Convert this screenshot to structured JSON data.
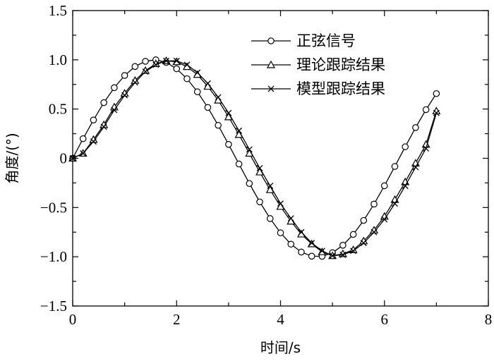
{
  "chart_data": {
    "type": "line",
    "xlabel": "时间/s",
    "ylabel": "角度/(°)",
    "xlim": [
      0,
      8
    ],
    "ylim": [
      -1.5,
      1.5
    ],
    "x_ticks": [
      0,
      2,
      4,
      6,
      8
    ],
    "y_ticks": [
      1.5,
      1.0,
      0.5,
      0,
      -0.5,
      -1.0,
      -1.5
    ],
    "x_tick_labels": [
      "0",
      "2",
      "4",
      "6",
      "8"
    ],
    "y_tick_labels": [
      "1.5",
      "1.0",
      "0.5",
      "0",
      "−0.5",
      "−1.0",
      "−1.5"
    ],
    "grid": false,
    "legend_position": "top-right",
    "line_color": "#000000",
    "series": [
      {
        "name": "正弦信号",
        "marker": "circle",
        "x": [
          0,
          0.2,
          0.4,
          0.6,
          0.8,
          1.0,
          1.2,
          1.4,
          1.6,
          1.8,
          2.0,
          2.2,
          2.4,
          2.6,
          2.8,
          3.0,
          3.2,
          3.4,
          3.6,
          3.8,
          4.0,
          4.2,
          4.4,
          4.6,
          4.8,
          5.0,
          5.2,
          5.4,
          5.6,
          5.8,
          6.0,
          6.2,
          6.4,
          6.6,
          6.8,
          7.0
        ],
        "y": [
          0,
          0.199,
          0.389,
          0.565,
          0.717,
          0.841,
          0.932,
          0.985,
          1.0,
          0.974,
          0.909,
          0.808,
          0.675,
          0.516,
          0.335,
          0.141,
          -0.058,
          -0.256,
          -0.443,
          -0.612,
          -0.757,
          -0.872,
          -0.952,
          -0.994,
          -0.996,
          -0.959,
          -0.883,
          -0.773,
          -0.631,
          -0.465,
          -0.279,
          -0.083,
          0.117,
          0.312,
          0.494,
          0.657
        ]
      },
      {
        "name": "理论跟踪结果",
        "marker": "triangle",
        "x": [
          0,
          0.2,
          0.4,
          0.6,
          0.8,
          1.0,
          1.2,
          1.4,
          1.6,
          1.8,
          2.0,
          2.2,
          2.4,
          2.6,
          2.8,
          3.0,
          3.2,
          3.4,
          3.6,
          3.8,
          4.0,
          4.2,
          4.4,
          4.6,
          4.8,
          5.0,
          5.2,
          5.4,
          5.6,
          5.8,
          6.0,
          6.2,
          6.4,
          6.6,
          6.8,
          7.0
        ],
        "y": [
          0,
          0.05,
          0.19,
          0.34,
          0.52,
          0.66,
          0.79,
          0.89,
          0.96,
          0.99,
          0.98,
          0.93,
          0.85,
          0.73,
          0.59,
          0.42,
          0.24,
          0.05,
          -0.14,
          -0.32,
          -0.49,
          -0.64,
          -0.77,
          -0.87,
          -0.95,
          -0.99,
          -0.97,
          -0.93,
          -0.84,
          -0.73,
          -0.59,
          -0.42,
          -0.24,
          -0.05,
          0.14,
          0.48
        ]
      },
      {
        "name": "模型跟踪结果",
        "marker": "x",
        "x": [
          0,
          0.2,
          0.4,
          0.6,
          0.8,
          1.0,
          1.2,
          1.4,
          1.6,
          1.8,
          2.0,
          2.2,
          2.4,
          2.6,
          2.8,
          3.0,
          3.2,
          3.4,
          3.6,
          3.8,
          4.0,
          4.2,
          4.4,
          4.6,
          4.8,
          5.0,
          5.2,
          5.4,
          5.6,
          5.8,
          6.0,
          6.2,
          6.4,
          6.6,
          6.8,
          7.0
        ],
        "y": [
          0,
          0.05,
          0.17,
          0.32,
          0.49,
          0.64,
          0.77,
          0.88,
          0.95,
          0.99,
          0.99,
          0.95,
          0.87,
          0.76,
          0.62,
          0.46,
          0.28,
          0.09,
          -0.1,
          -0.28,
          -0.46,
          -0.61,
          -0.75,
          -0.86,
          -0.94,
          -0.99,
          -0.98,
          -0.94,
          -0.86,
          -0.75,
          -0.62,
          -0.46,
          -0.28,
          -0.09,
          0.1,
          0.46
        ]
      }
    ]
  }
}
